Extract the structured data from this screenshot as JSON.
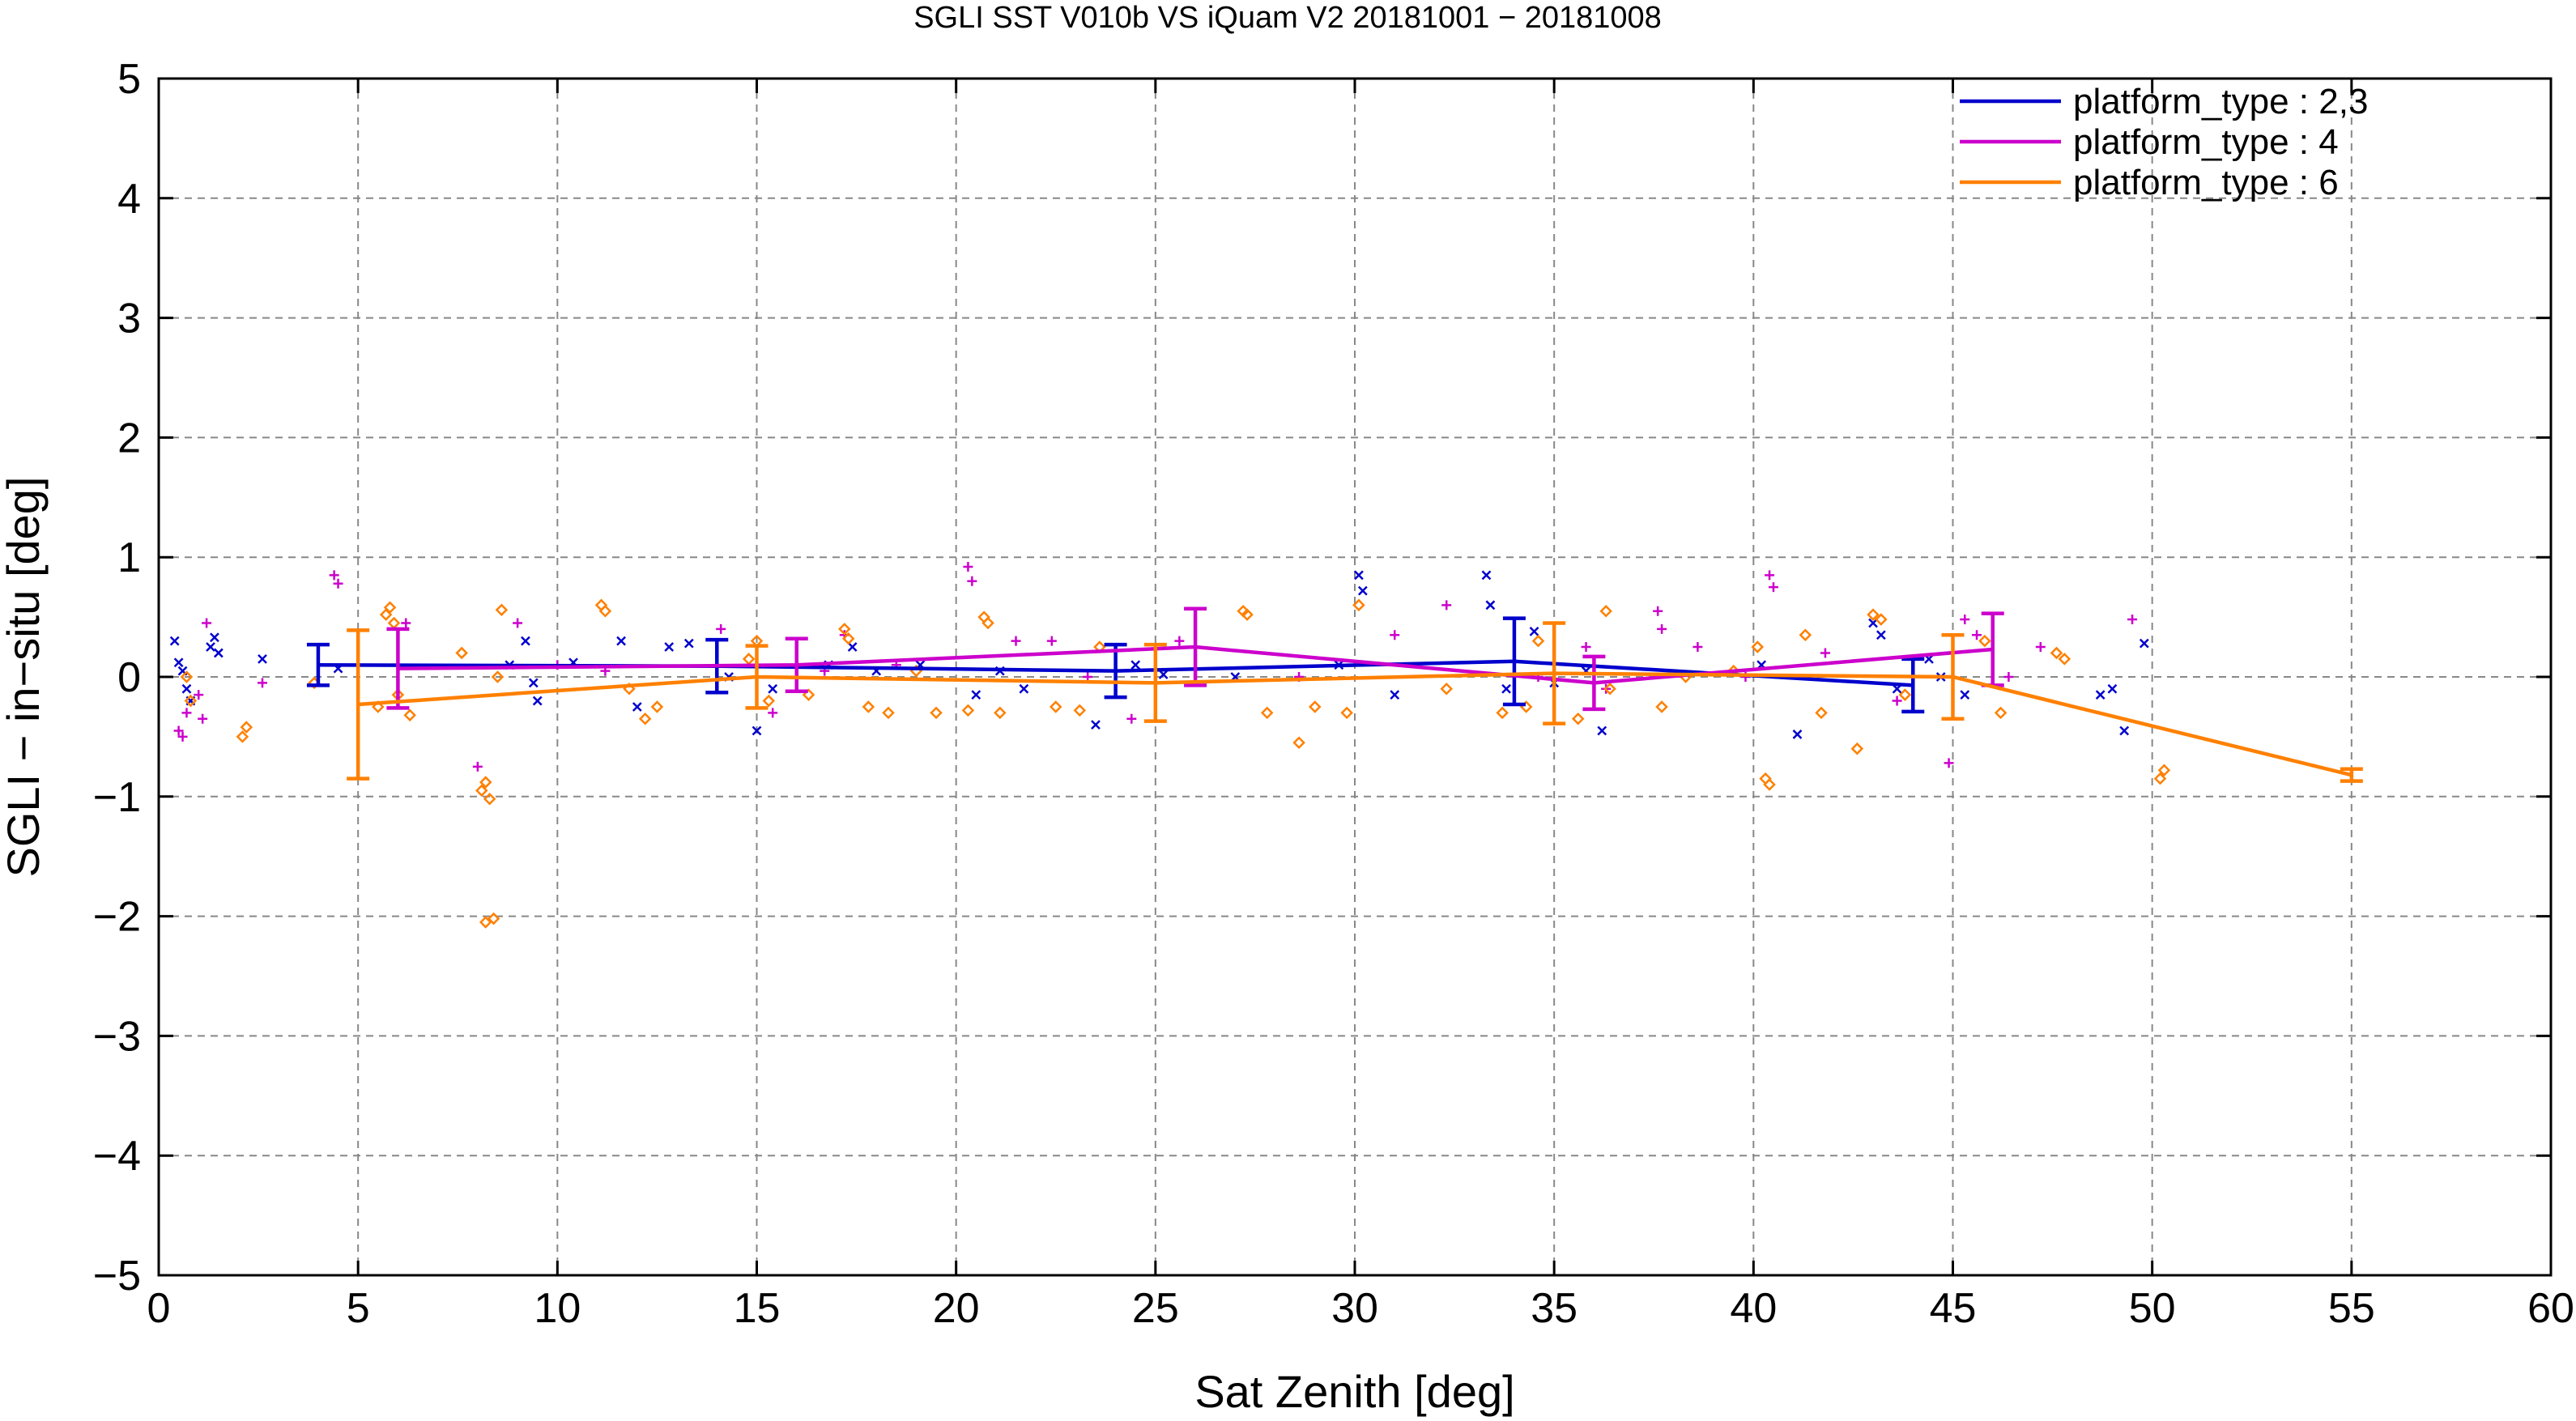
{
  "chart_data": {
    "type": "line",
    "title": "SGLI SST V010b VS iQuam V2 20181001 − 20181008",
    "xlabel": "Sat Zenith [deg]",
    "ylabel": "SGLI − in−situ [deg]",
    "xlim": [
      0,
      60
    ],
    "ylim": [
      -5,
      5
    ],
    "xticks": [
      0,
      5,
      10,
      15,
      20,
      25,
      30,
      35,
      40,
      45,
      50,
      55,
      60
    ],
    "yticks": [
      -5,
      -4,
      -3,
      -2,
      -1,
      0,
      1,
      2,
      3,
      4,
      5
    ],
    "x_tick_labels": [
      "0",
      "5",
      "10",
      "15",
      "20",
      "25",
      "30",
      "35",
      "40",
      "45",
      "50",
      "55",
      "60"
    ],
    "y_tick_labels": [
      "−5",
      "−4",
      "−3",
      "−2",
      "−1",
      "0",
      "1",
      "2",
      "3",
      "4",
      "5"
    ],
    "grid": true,
    "legend_position": "top-right",
    "series": [
      {
        "name": "platform_type : 2,3",
        "color": "#0000cc",
        "marker": "x",
        "x": [
          4,
          14,
          24,
          34,
          44
        ],
        "y": [
          0.1,
          0.09,
          0.05,
          0.13,
          -0.07
        ],
        "err": [
          0.17,
          0.22,
          0.22,
          0.36,
          0.22
        ],
        "points": [
          [
            0.4,
            0.3
          ],
          [
            0.5,
            0.12
          ],
          [
            0.6,
            0.05
          ],
          [
            0.7,
            -0.1
          ],
          [
            0.8,
            -0.2
          ],
          [
            1.3,
            0.25
          ],
          [
            1.4,
            0.33
          ],
          [
            1.5,
            0.2
          ],
          [
            2.6,
            0.15
          ],
          [
            4.5,
            0.07
          ],
          [
            8.8,
            0.1
          ],
          [
            9.2,
            0.3
          ],
          [
            9.4,
            -0.05
          ],
          [
            9.5,
            -0.2
          ],
          [
            10.4,
            0.12
          ],
          [
            11.6,
            0.3
          ],
          [
            12.0,
            -0.25
          ],
          [
            12.8,
            0.25
          ],
          [
            13.3,
            0.28
          ],
          [
            14.3,
            0.0
          ],
          [
            15.0,
            -0.45
          ],
          [
            15.4,
            -0.1
          ],
          [
            16.8,
            0.1
          ],
          [
            17.4,
            0.25
          ],
          [
            18.0,
            0.05
          ],
          [
            19.1,
            0.1
          ],
          [
            20.5,
            -0.15
          ],
          [
            21.1,
            0.05
          ],
          [
            21.7,
            -0.1
          ],
          [
            23.5,
            -0.4
          ],
          [
            24.5,
            0.1
          ],
          [
            25.2,
            0.02
          ],
          [
            27.0,
            0.0
          ],
          [
            29.6,
            0.1
          ],
          [
            30.1,
            0.85
          ],
          [
            30.2,
            0.72
          ],
          [
            31.0,
            -0.15
          ],
          [
            33.3,
            0.85
          ],
          [
            33.4,
            0.6
          ],
          [
            33.8,
            -0.1
          ],
          [
            34.5,
            0.38
          ],
          [
            35.0,
            -0.05
          ],
          [
            35.8,
            0.05
          ],
          [
            36.2,
            -0.45
          ],
          [
            40.2,
            0.1
          ],
          [
            41.1,
            -0.48
          ],
          [
            43.0,
            0.45
          ],
          [
            43.2,
            0.35
          ],
          [
            43.6,
            -0.1
          ],
          [
            44.4,
            0.15
          ],
          [
            44.7,
            0.0
          ],
          [
            45.3,
            -0.15
          ],
          [
            48.7,
            -0.15
          ],
          [
            49.0,
            -0.1
          ],
          [
            49.3,
            -0.45
          ],
          [
            49.8,
            0.28
          ]
        ]
      },
      {
        "name": "platform_type : 4",
        "color": "#cc00cc",
        "marker": "+",
        "x": [
          6,
          16,
          26,
          36,
          46
        ],
        "y": [
          0.07,
          0.1,
          0.25,
          -0.05,
          0.23
        ],
        "err": [
          0.33,
          0.22,
          0.32,
          0.22,
          0.3
        ],
        "points": [
          [
            0.5,
            -0.45
          ],
          [
            0.6,
            -0.5
          ],
          [
            0.7,
            -0.3
          ],
          [
            1.0,
            -0.15
          ],
          [
            1.1,
            -0.35
          ],
          [
            1.2,
            0.45
          ],
          [
            2.6,
            -0.05
          ],
          [
            4.4,
            0.85
          ],
          [
            4.5,
            0.78
          ],
          [
            6.2,
            0.45
          ],
          [
            8.0,
            -0.75
          ],
          [
            9.0,
            0.45
          ],
          [
            10.0,
            0.1
          ],
          [
            11.2,
            0.05
          ],
          [
            14.1,
            0.4
          ],
          [
            15.4,
            -0.3
          ],
          [
            16.7,
            0.05
          ],
          [
            17.2,
            0.35
          ],
          [
            18.5,
            0.1
          ],
          [
            20.3,
            0.92
          ],
          [
            20.4,
            0.8
          ],
          [
            21.5,
            0.3
          ],
          [
            22.4,
            0.3
          ],
          [
            23.3,
            0.0
          ],
          [
            24.4,
            -0.35
          ],
          [
            25.6,
            0.3
          ],
          [
            28.6,
            0.0
          ],
          [
            31.0,
            0.35
          ],
          [
            32.3,
            0.6
          ],
          [
            34.6,
            0.0
          ],
          [
            35.8,
            0.25
          ],
          [
            36.3,
            -0.1
          ],
          [
            37.6,
            0.55
          ],
          [
            37.7,
            0.4
          ],
          [
            38.6,
            0.25
          ],
          [
            39.8,
            0.0
          ],
          [
            40.4,
            0.85
          ],
          [
            40.5,
            0.75
          ],
          [
            41.8,
            0.2
          ],
          [
            43.6,
            -0.2
          ],
          [
            44.9,
            -0.72
          ],
          [
            45.3,
            0.48
          ],
          [
            45.6,
            0.35
          ],
          [
            46.4,
            0.0
          ],
          [
            47.2,
            0.25
          ],
          [
            49.5,
            0.48
          ]
        ]
      },
      {
        "name": "platform_type : 6",
        "color": "#ff8000",
        "marker": "diamond",
        "x": [
          5,
          15,
          25,
          35,
          45,
          55
        ],
        "y": [
          -0.23,
          0.0,
          -0.05,
          0.03,
          0.0,
          -0.82
        ],
        "err": [
          0.62,
          0.26,
          0.32,
          0.42,
          0.35,
          0.05
        ],
        "points": [
          [
            0.7,
            0.0
          ],
          [
            0.8,
            -0.2
          ],
          [
            2.1,
            -0.5
          ],
          [
            2.2,
            -0.42
          ],
          [
            3.9,
            -0.05
          ],
          [
            5.5,
            -0.25
          ],
          [
            5.7,
            0.52
          ],
          [
            5.8,
            0.58
          ],
          [
            5.9,
            0.45
          ],
          [
            6.0,
            -0.15
          ],
          [
            6.3,
            -0.32
          ],
          [
            7.6,
            0.2
          ],
          [
            8.1,
            -0.95
          ],
          [
            8.2,
            -0.88
          ],
          [
            8.3,
            -1.02
          ],
          [
            8.2,
            -2.05
          ],
          [
            8.4,
            -2.02
          ],
          [
            8.6,
            0.56
          ],
          [
            8.5,
            0.0
          ],
          [
            11.1,
            0.6
          ],
          [
            11.2,
            0.55
          ],
          [
            11.8,
            -0.1
          ],
          [
            12.2,
            -0.35
          ],
          [
            12.5,
            -0.25
          ],
          [
            14.8,
            0.15
          ],
          [
            15.0,
            0.3
          ],
          [
            15.3,
            -0.2
          ],
          [
            16.3,
            -0.15
          ],
          [
            17.2,
            0.4
          ],
          [
            17.3,
            0.32
          ],
          [
            17.8,
            -0.25
          ],
          [
            18.3,
            -0.3
          ],
          [
            19.0,
            0.05
          ],
          [
            19.5,
            -0.3
          ],
          [
            20.3,
            -0.28
          ],
          [
            20.7,
            0.5
          ],
          [
            20.8,
            0.45
          ],
          [
            21.1,
            -0.3
          ],
          [
            22.5,
            -0.25
          ],
          [
            23.1,
            -0.28
          ],
          [
            23.6,
            0.25
          ],
          [
            27.2,
            0.55
          ],
          [
            27.3,
            0.52
          ],
          [
            27.8,
            -0.3
          ],
          [
            28.6,
            -0.55
          ],
          [
            29.0,
            -0.25
          ],
          [
            29.8,
            -0.3
          ],
          [
            30.1,
            0.6
          ],
          [
            32.3,
            -0.1
          ],
          [
            33.7,
            -0.3
          ],
          [
            34.3,
            -0.25
          ],
          [
            34.6,
            0.3
          ],
          [
            35.6,
            -0.35
          ],
          [
            36.3,
            0.55
          ],
          [
            36.4,
            -0.1
          ],
          [
            37.7,
            -0.25
          ],
          [
            38.3,
            0.0
          ],
          [
            39.5,
            0.05
          ],
          [
            40.1,
            0.25
          ],
          [
            40.3,
            -0.85
          ],
          [
            40.4,
            -0.9
          ],
          [
            41.3,
            0.35
          ],
          [
            41.7,
            -0.3
          ],
          [
            42.6,
            -0.6
          ],
          [
            43.0,
            0.52
          ],
          [
            43.2,
            0.48
          ],
          [
            43.8,
            -0.15
          ],
          [
            45.8,
            0.3
          ],
          [
            46.2,
            -0.3
          ],
          [
            47.6,
            0.2
          ],
          [
            47.8,
            0.15
          ],
          [
            50.2,
            -0.85
          ],
          [
            50.3,
            -0.78
          ]
        ]
      }
    ]
  }
}
